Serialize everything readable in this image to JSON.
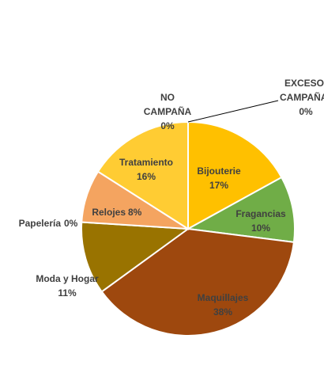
{
  "chart_data": {
    "type": "pie",
    "title": "",
    "slices": [
      {
        "label": "Bijouterie",
        "value": 17,
        "display": "17%",
        "color": "#FFC000"
      },
      {
        "label": "Fragancias",
        "value": 10,
        "display": "10%",
        "color": "#70AD47"
      },
      {
        "label": "Maquillajes",
        "value": 38,
        "display": "38%",
        "color": "#9E480E"
      },
      {
        "label": "Moda y Hogar",
        "value": 11,
        "display": "11%",
        "color": "#997300"
      },
      {
        "label": "Papelería",
        "value": 0,
        "display": "0%",
        "color": "#A5A5A5"
      },
      {
        "label": "Relojes",
        "value": 8,
        "display": "8%",
        "color": "#F4A460"
      },
      {
        "label": "Tratamiento",
        "value": 16,
        "display": "16%",
        "color": "#FFCC33"
      },
      {
        "label": "NO CAMPAÑA",
        "value": 0,
        "display": "0%",
        "color": "#FFD966"
      },
      {
        "label": "EXCESO CAMPAÑA",
        "value": 0,
        "display": "0%",
        "color": "#C55A11"
      }
    ],
    "legend": "none",
    "start_angle": "12 o'clock",
    "direction": "clockwise"
  }
}
